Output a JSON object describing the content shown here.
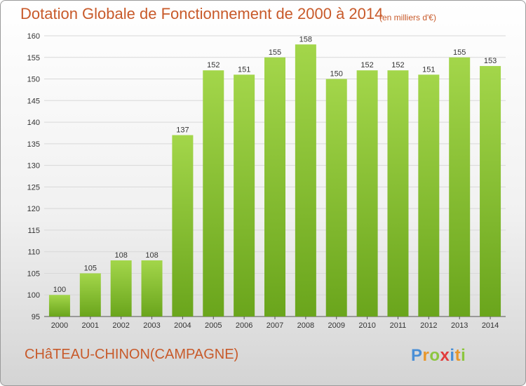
{
  "header": {
    "title": "Dotation Globale de Fonctionnement de 2000 à 2014",
    "subtitle": "(en milliers d'€)"
  },
  "footer": {
    "commune": "CHâTEAU-CHINON(CAMPAGNE)",
    "logo": "Proxiti"
  },
  "colors": {
    "bar_light": "#a3d64a",
    "bar_dark": "#6aa51c",
    "title": "#c85a2a"
  },
  "chart_data": {
    "type": "bar",
    "title": "Dotation Globale de Fonctionnement de 2000 à 2014",
    "subtitle": "(en milliers d'€)",
    "xlabel": "",
    "ylabel": "",
    "categories": [
      "2000",
      "2001",
      "2002",
      "2003",
      "2004",
      "2005",
      "2006",
      "2007",
      "2008",
      "2009",
      "2010",
      "2011",
      "2012",
      "2013",
      "2014"
    ],
    "values": [
      100,
      105,
      108,
      108,
      137,
      152,
      151,
      155,
      158,
      150,
      152,
      152,
      151,
      155,
      153
    ],
    "ylim": [
      95,
      160
    ],
    "yticks": [
      95,
      100,
      105,
      110,
      115,
      120,
      125,
      130,
      135,
      140,
      145,
      150,
      155,
      160
    ],
    "grid": true,
    "data_labels": true
  }
}
